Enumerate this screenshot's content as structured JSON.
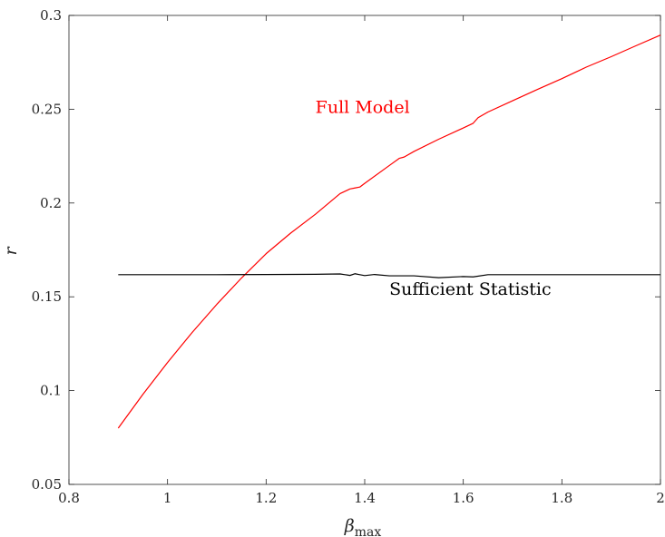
{
  "chart_data": {
    "type": "line",
    "title": "",
    "xlabel": "β",
    "xlabel_sub": "max",
    "ylabel": "r",
    "xlim": [
      0.8,
      2.0
    ],
    "ylim": [
      0.05,
      0.3
    ],
    "xticks": [
      0.8,
      1.0,
      1.2,
      1.4,
      1.6,
      1.8,
      2.0
    ],
    "xtick_labels": [
      "0.8",
      "1",
      "1.2",
      "1.4",
      "1.6",
      "1.8",
      "2"
    ],
    "yticks": [
      0.05,
      0.1,
      0.15,
      0.2,
      0.25,
      0.3
    ],
    "ytick_labels": [
      "0.05",
      "0.1",
      "0.15",
      "0.2",
      "0.25",
      "0.3"
    ],
    "grid": false,
    "box": true,
    "series": [
      {
        "name": "Full Model",
        "color": "#ff0000",
        "x": [
          0.9,
          0.95,
          1.0,
          1.05,
          1.1,
          1.15,
          1.2,
          1.25,
          1.3,
          1.35,
          1.37,
          1.38,
          1.39,
          1.4,
          1.45,
          1.47,
          1.48,
          1.5,
          1.55,
          1.6,
          1.62,
          1.63,
          1.65,
          1.7,
          1.75,
          1.8,
          1.85,
          1.9,
          1.95,
          2.0
        ],
        "y": [
          0.08,
          0.098,
          0.115,
          0.131,
          0.146,
          0.16,
          0.173,
          0.184,
          0.194,
          0.205,
          0.2075,
          0.208,
          0.2085,
          0.2105,
          0.22,
          0.2238,
          0.2245,
          0.2275,
          0.234,
          0.24,
          0.2425,
          0.2455,
          0.2485,
          0.2545,
          0.2605,
          0.2663,
          0.2725,
          0.278,
          0.2838,
          0.2895
        ]
      },
      {
        "name": "Sufficient Statistic",
        "color": "#000000",
        "x": [
          0.9,
          1.0,
          1.1,
          1.2,
          1.3,
          1.35,
          1.37,
          1.38,
          1.39,
          1.4,
          1.42,
          1.45,
          1.5,
          1.55,
          1.6,
          1.62,
          1.65,
          1.7,
          1.8,
          1.9,
          2.0
        ],
        "y": [
          0.1618,
          0.1618,
          0.1618,
          0.1619,
          0.162,
          0.1622,
          0.1614,
          0.1623,
          0.1618,
          0.1613,
          0.1619,
          0.1612,
          0.1612,
          0.1602,
          0.1608,
          0.1606,
          0.1618,
          0.1618,
          0.1618,
          0.1618,
          0.1618
        ]
      }
    ],
    "annotations": [
      {
        "text": "Full Model",
        "x": 1.3,
        "y": 0.248,
        "color": "#ff0000"
      },
      {
        "text": "Sufficient Statistic",
        "x": 1.45,
        "y": 0.151,
        "color": "#000000"
      }
    ]
  }
}
